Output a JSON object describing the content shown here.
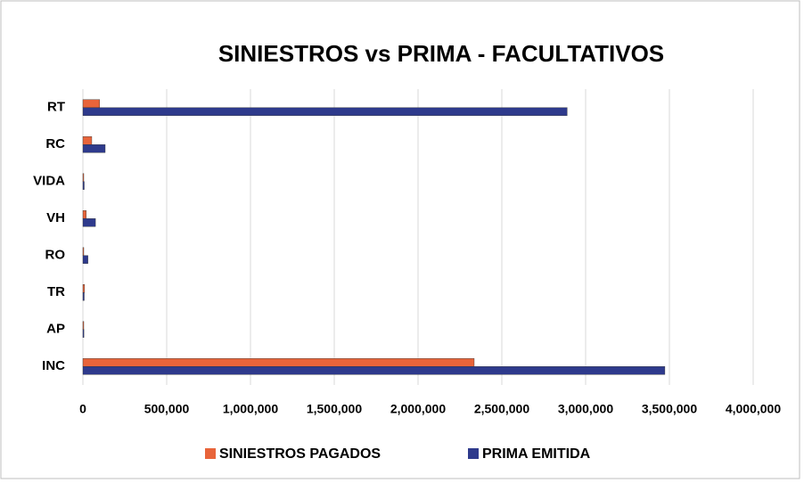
{
  "chart_data": {
    "type": "hbar",
    "title": "SINIESTROS vs PRIMA - FACULTATIVOS",
    "categories": [
      "RT",
      "RC",
      "VIDA",
      "VH",
      "RO",
      "TR",
      "AP",
      "INC"
    ],
    "series": [
      {
        "name": "SINIESTROS PAGADOS",
        "color": "#e8643a",
        "values": [
          100000,
          53000,
          2000,
          20000,
          2000,
          10000,
          1000,
          2335000
        ]
      },
      {
        "name": "PRIMA EMITIDA",
        "color": "#2e3a8c",
        "values": [
          2890000,
          133000,
          8000,
          75000,
          30000,
          8000,
          6000,
          3473000
        ]
      }
    ],
    "xlim": [
      0,
      4000000
    ],
    "xticks": [
      0,
      {
        "value": 500000,
        "label": "500,000"
      },
      {
        "value": 1000000,
        "label": "1,000,000"
      },
      {
        "value": 1500000,
        "label": "1,500,000"
      },
      {
        "value": 2000000,
        "label": "2,000,000"
      },
      {
        "value": 2500000,
        "label": "2,500,000"
      },
      {
        "value": 3000000,
        "label": "3,000,000"
      },
      {
        "value": 3500000,
        "label": "3,500,000"
      },
      {
        "value": 4000000,
        "label": "4,000,000"
      }
    ],
    "grid": true,
    "legend": "bottom"
  }
}
